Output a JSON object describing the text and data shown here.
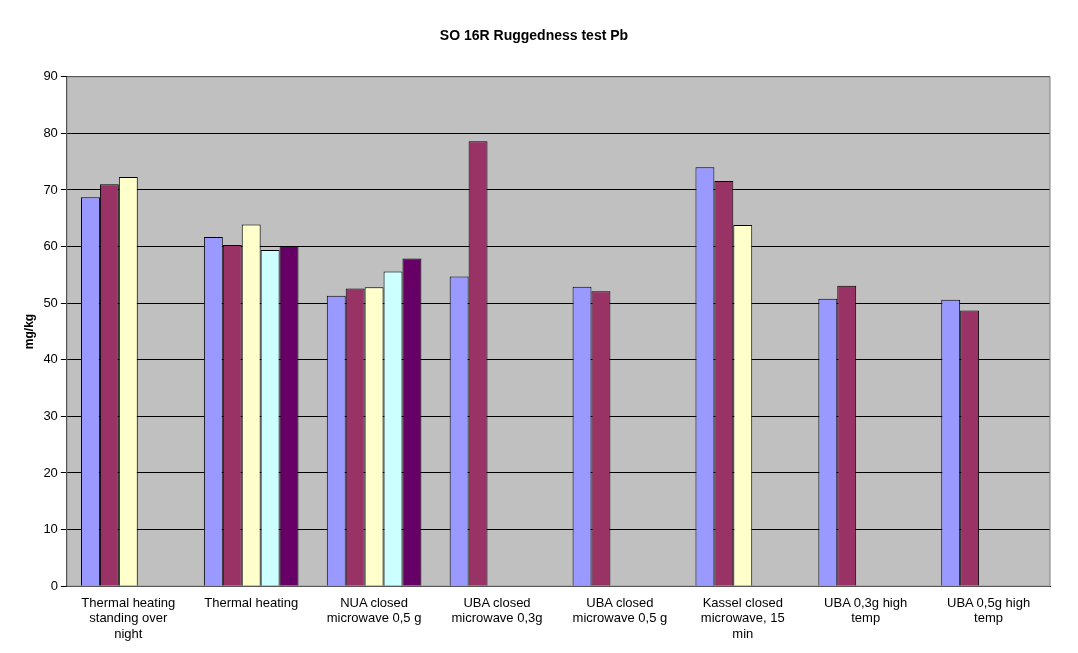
{
  "chart_data": {
    "type": "bar",
    "title": "SO 16R Ruggedness test Pb",
    "ylabel": "mg/kg",
    "categories": [
      "Thermal heating standing over night",
      "Thermal heating",
      "NUA closed microwave 0,5 g",
      "UBA closed microwave 0,3g",
      "UBA closed microwave 0,5 g",
      "Kassel closed microwave, 15 min",
      "UBA 0,3g high temp",
      "UBA 0,5g high temp"
    ],
    "series": [
      {
        "color": "#9999ff",
        "values": [
          68.7,
          61.7,
          51.3,
          54.7,
          52.9,
          74.0,
          50.8,
          50.6
        ]
      },
      {
        "color": "#993366",
        "values": [
          71.0,
          60.3,
          52.6,
          78.6,
          52.1,
          71.6,
          53.1,
          48.7
        ]
      },
      {
        "color": "#ffffcc",
        "values": [
          72.3,
          63.9,
          52.8,
          null,
          null,
          63.8,
          null,
          null
        ]
      },
      {
        "color": "#ccffff",
        "values": [
          null,
          59.4,
          55.6,
          null,
          null,
          null,
          null,
          null
        ]
      },
      {
        "color": "#660066",
        "values": [
          null,
          60.1,
          57.9,
          null,
          null,
          null,
          null,
          null
        ]
      }
    ],
    "ylim": [
      0,
      90
    ],
    "yticks": [
      0,
      10,
      20,
      30,
      40,
      50,
      60,
      70,
      80,
      90
    ],
    "grid": "y",
    "legend": false
  }
}
